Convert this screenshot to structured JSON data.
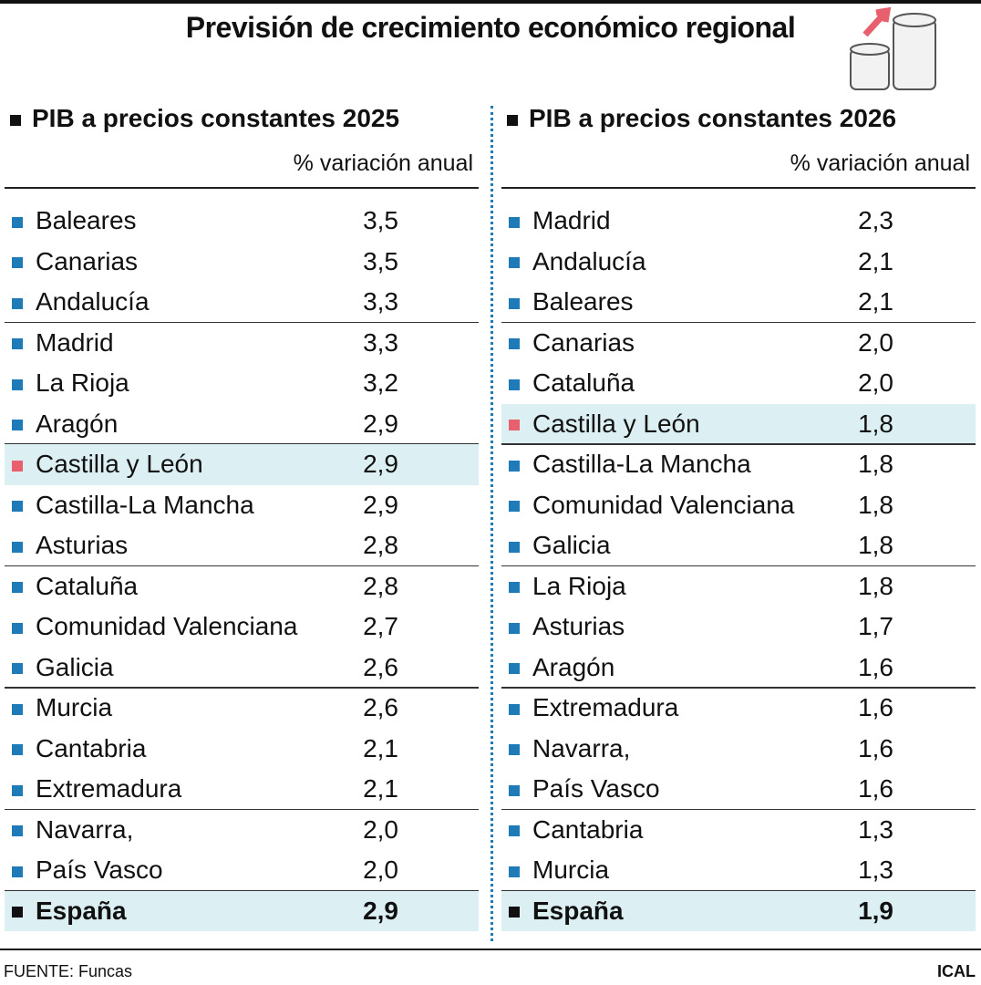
{
  "title": "Previsión de crecimiento económico regional",
  "tables": [
    {
      "heading": "PIB a precios constantes 2025",
      "subheading": "% variación anual",
      "marker_color": "#1f7ab8",
      "rows": [
        {
          "name": "Baleares",
          "value": "3,5"
        },
        {
          "name": "Canarias",
          "value": "3,5"
        },
        {
          "name": "Andalucía",
          "value": "3,3"
        },
        {
          "name": "Madrid",
          "value": "3,3"
        },
        {
          "name": "La Rioja",
          "value": "3,2"
        },
        {
          "name": "Aragón",
          "value": "2,9"
        },
        {
          "name": "Castilla y León",
          "value": "2,9",
          "color": "#e8606e"
        },
        {
          "name": "Castilla-La Mancha",
          "value": "2,9"
        },
        {
          "name": "Asturias",
          "value": "2,8"
        },
        {
          "name": "Cataluña",
          "value": "2,8"
        },
        {
          "name": "Comunidad Valenciana",
          "value": "2,7"
        },
        {
          "name": "Galicia",
          "value": "2,6"
        },
        {
          "name": "Murcia",
          "value": "2,6"
        },
        {
          "name": "Cantabria",
          "value": "2,1"
        },
        {
          "name": "Extremadura",
          "value": "2,1"
        },
        {
          "name": "Navarra,",
          "value": "2,0"
        },
        {
          "name": "País Vasco",
          "value": "2,0"
        }
      ],
      "total": {
        "name": "España",
        "value": "2,9"
      }
    },
    {
      "heading": "PIB a precios constantes 2026",
      "subheading": "% variación anual",
      "marker_color": "#1f7ab8",
      "rows": [
        {
          "name": "Madrid",
          "value": "2,3"
        },
        {
          "name": "Andalucía",
          "value": "2,1"
        },
        {
          "name": "Baleares",
          "value": "2,1"
        },
        {
          "name": "Canarias",
          "value": "2,0"
        },
        {
          "name": "Cataluña",
          "value": "2,0"
        },
        {
          "name": "Castilla y León",
          "value": "1,8",
          "color": "#e8606e"
        },
        {
          "name": "Castilla-La Mancha",
          "value": "1,8"
        },
        {
          "name": "Comunidad Valenciana",
          "value": "1,8"
        },
        {
          "name": "Galicia",
          "value": "1,8"
        },
        {
          "name": "La Rioja",
          "value": "1,8"
        },
        {
          "name": "Asturias",
          "value": "1,7"
        },
        {
          "name": "Aragón",
          "value": "1,6"
        },
        {
          "name": "Extremadura",
          "value": "1,6"
        },
        {
          "name": "Navarra,",
          "value": "1,6"
        },
        {
          "name": "País Vasco",
          "value": "1,6"
        },
        {
          "name": "Cantabria",
          "value": "1,3"
        },
        {
          "name": "Murcia",
          "value": "1,3"
        }
      ],
      "total": {
        "name": "España",
        "value": "1,9"
      }
    }
  ],
  "footer": {
    "source": "FUENTE: Funcas",
    "brand": "ICAL"
  }
}
